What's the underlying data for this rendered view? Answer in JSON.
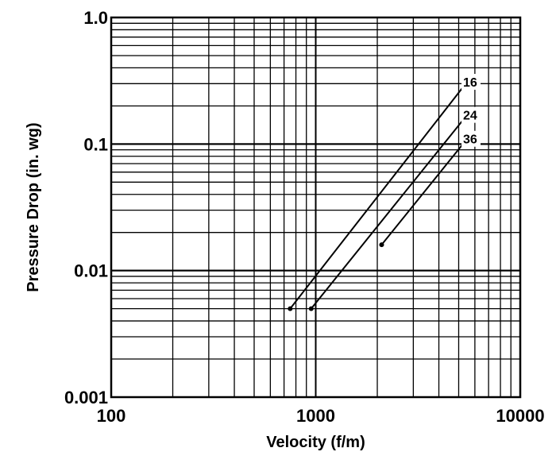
{
  "chart_data": {
    "type": "line",
    "title": "",
    "xlabel": "Velocity (f/m)",
    "ylabel": "Pressure Drop (in. wg)",
    "x_scale": "log",
    "y_scale": "log",
    "xlim": [
      100,
      10000
    ],
    "ylim": [
      0.001,
      1.0
    ],
    "grid": true,
    "x_ticks": [
      "100",
      "1000",
      "10000"
    ],
    "y_ticks": [
      "0.001",
      "0.01",
      "0.1",
      "1.0"
    ],
    "series": [
      {
        "name": "16",
        "x": [
          750,
          5500
        ],
        "y": [
          0.005,
          0.31
        ]
      },
      {
        "name": "24",
        "x": [
          950,
          5500
        ],
        "y": [
          0.005,
          0.17
        ]
      },
      {
        "name": "36",
        "x": [
          2100,
          5500
        ],
        "y": [
          0.016,
          0.11
        ]
      }
    ]
  },
  "colors": {
    "line": "#000000",
    "grid": "#000000",
    "background": "#ffffff"
  }
}
